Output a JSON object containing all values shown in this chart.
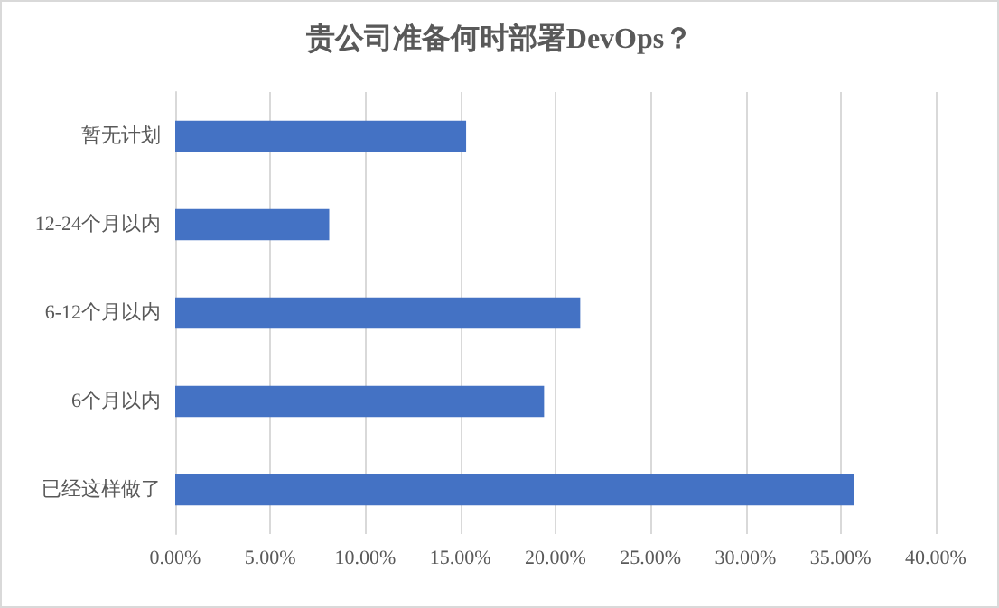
{
  "chart_data": {
    "type": "bar",
    "orientation": "horizontal",
    "title": "贵公司准备何时部署DevOps？",
    "categories": [
      "暂无计划",
      "12-24个月以内",
      "6-12个月以内",
      "6个月以内",
      "已经这样做了"
    ],
    "values": [
      15.3,
      8.1,
      21.3,
      19.4,
      35.7
    ],
    "color": "#4472c4",
    "xlim": [
      0,
      40
    ],
    "xticks": [
      {
        "value": 0,
        "label": "0.00%"
      },
      {
        "value": 5,
        "label": "5.00%"
      },
      {
        "value": 10,
        "label": "10.00%"
      },
      {
        "value": 15,
        "label": "15.00%"
      },
      {
        "value": 20,
        "label": "20.00%"
      },
      {
        "value": 25,
        "label": "25.00%"
      },
      {
        "value": 30,
        "label": "30.00%"
      },
      {
        "value": 35,
        "label": "35.00%"
      },
      {
        "value": 40,
        "label": "40.00%"
      }
    ],
    "grid": "x"
  }
}
